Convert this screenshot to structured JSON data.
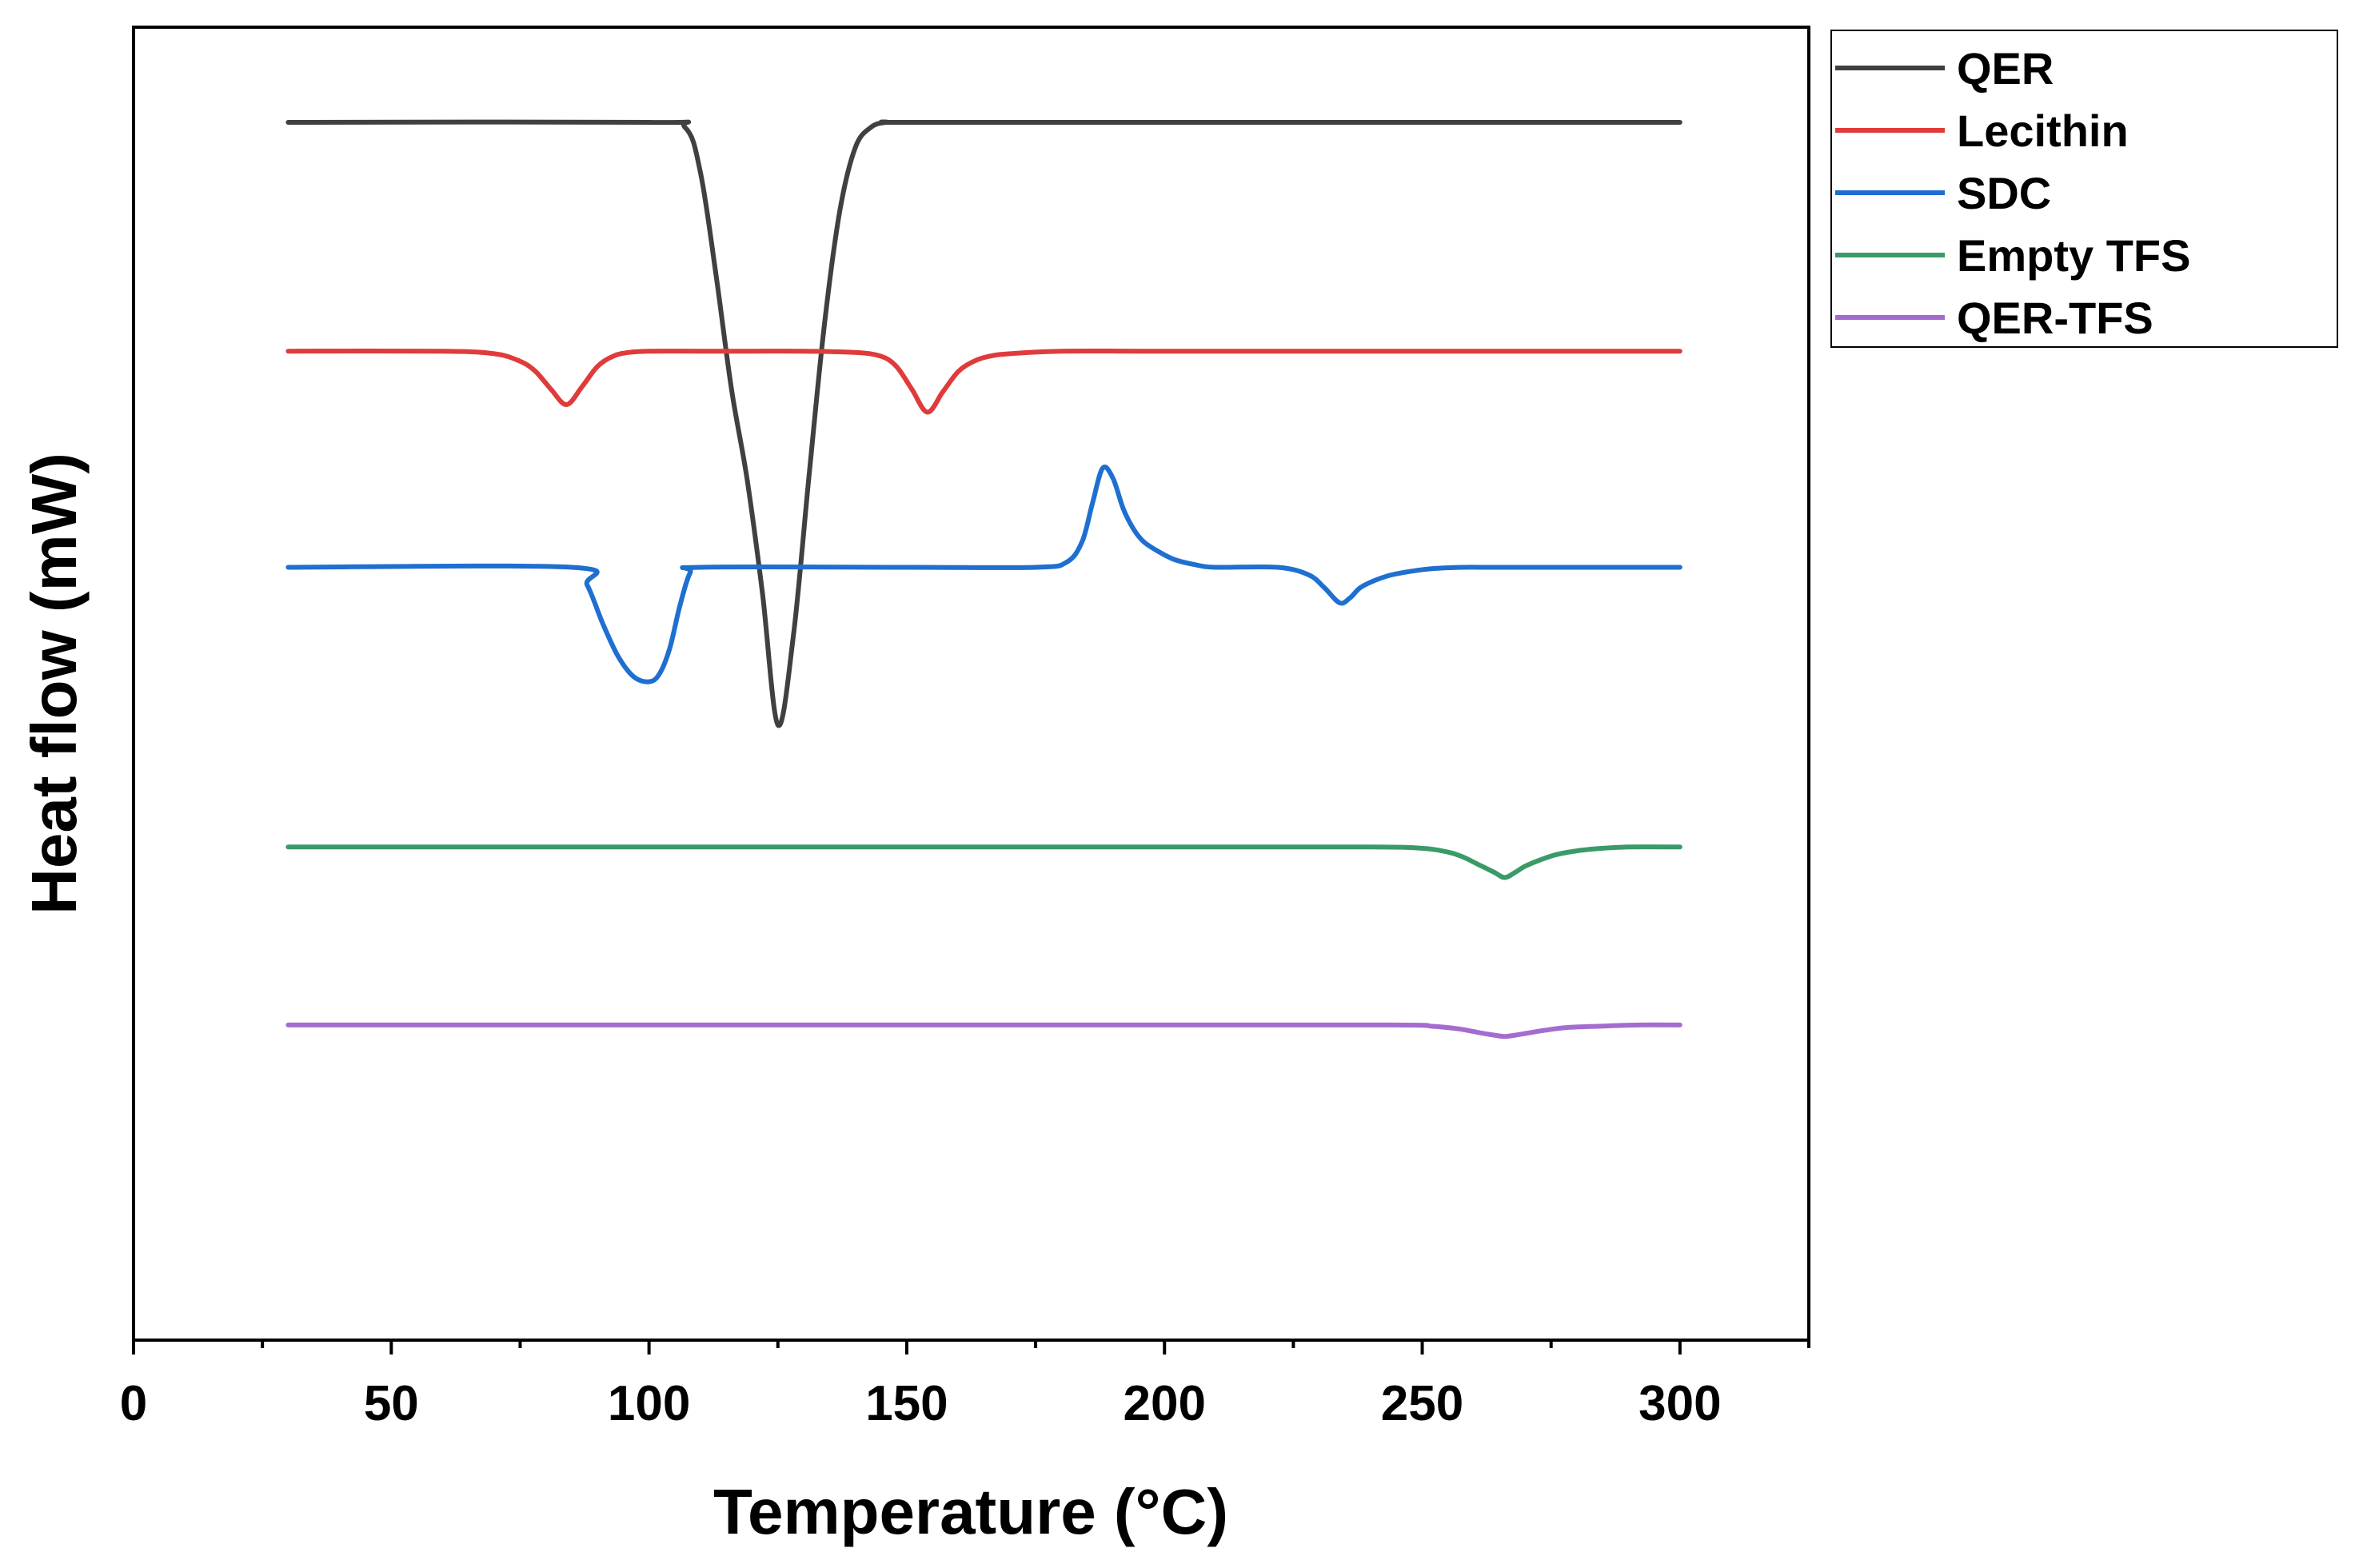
{
  "chart_data": {
    "type": "line",
    "xlabel": "Temperature (°C)",
    "ylabel": "Heat flow (mW)",
    "xlim": [
      0,
      325
    ],
    "xticks": [
      "0",
      "50",
      "100",
      "150",
      "200",
      "250",
      "300"
    ],
    "yticks": "none",
    "grid": false,
    "legend_position": "top-right, outside plot area",
    "series": [
      {
        "name": "QER",
        "color": "#404040",
        "x": [
          30,
          100,
          107,
          110,
          113,
          116,
          119,
          122,
          125,
          128,
          131,
          134,
          137,
          140,
          143,
          146,
          150,
          200,
          250,
          300
        ],
        "y": [
          100,
          100,
          99.8,
          98.0,
          94.0,
          89.5,
          86.0,
          81.5,
          76.3,
          79.8,
          86.0,
          92.0,
          96.5,
          99.0,
          99.8,
          100,
          100,
          100,
          100,
          100
        ]
      },
      {
        "name": "Lecithin",
        "color": "#e03b3b",
        "x": [
          30,
          60,
          70,
          75,
          78,
          81,
          84,
          87,
          90,
          93,
          96,
          100,
          110,
          120,
          130,
          140,
          145,
          148,
          151,
          154,
          157,
          160,
          163,
          166,
          170,
          180,
          200,
          250,
          300
        ],
        "y": [
          91,
          91,
          90.9,
          90.6,
          90.2,
          89.5,
          88.9,
          89.6,
          90.4,
          90.8,
          90.95,
          91,
          91,
          91,
          91,
          90.95,
          90.8,
          90.4,
          89.5,
          88.6,
          89.4,
          90.2,
          90.6,
          90.8,
          90.9,
          91,
          91,
          91,
          91
        ]
      },
      {
        "name": "SDC",
        "color": "#1f6fd0",
        "x": [
          30,
          85,
          88,
          91,
          94,
          97,
          100,
          102,
          104,
          106,
          108,
          110,
          150,
          175,
          181,
          184,
          186,
          188,
          190,
          192,
          194,
          196,
          199,
          202,
          206,
          210,
          222,
          228,
          231,
          234,
          236,
          238,
          241,
          244,
          248,
          252,
          258,
          265,
          300
        ],
        "y": [
          82.5,
          82.5,
          81.8,
          80.3,
          79.0,
          78.2,
          78.0,
          78.3,
          79.3,
          81.0,
          82.3,
          82.5,
          82.5,
          82.5,
          82.7,
          83.5,
          85.0,
          86.4,
          86.0,
          84.8,
          84.0,
          83.5,
          83.1,
          82.8,
          82.6,
          82.5,
          82.5,
          82.2,
          81.7,
          81.1,
          81.3,
          81.7,
          82.0,
          82.2,
          82.35,
          82.45,
          82.5,
          82.5,
          82.5
        ]
      },
      {
        "name": "Empty TFS",
        "color": "#3a9a68",
        "x": [
          30,
          100,
          150,
          200,
          240,
          250,
          255,
          258,
          261,
          264,
          266,
          268,
          270,
          273,
          276,
          280,
          285,
          290,
          300
        ],
        "y": [
          71.5,
          71.5,
          71.5,
          71.5,
          71.5,
          71.45,
          71.3,
          71.1,
          70.8,
          70.5,
          70.3,
          70.5,
          70.75,
          71.0,
          71.2,
          71.35,
          71.45,
          71.5,
          71.5
        ]
      },
      {
        "name": "QER-TFS",
        "color": "#a56cd0",
        "x": [
          30,
          100,
          150,
          200,
          245,
          252,
          257,
          261,
          264,
          266,
          268,
          271,
          274,
          278,
          284,
          292,
          300
        ],
        "y": [
          64.5,
          64.5,
          64.5,
          64.5,
          64.5,
          64.45,
          64.35,
          64.2,
          64.1,
          64.05,
          64.1,
          64.2,
          64.3,
          64.4,
          64.45,
          64.5,
          64.5
        ]
      }
    ]
  }
}
